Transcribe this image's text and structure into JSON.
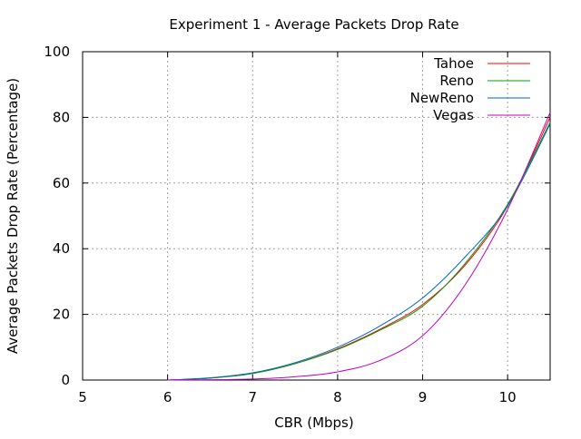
{
  "chart_data": {
    "type": "line",
    "title": "Experiment 1 - Average Packets Drop Rate",
    "xlabel": "CBR (Mbps)",
    "ylabel": "Average Packets Drop Rate (Percentage)",
    "xlim": [
      5,
      10.5
    ],
    "ylim": [
      0,
      100
    ],
    "xticks": [
      "5",
      "6",
      "7",
      "8",
      "9",
      "10"
    ],
    "yticks": [
      "0",
      "20",
      "40",
      "60",
      "80",
      "100"
    ],
    "grid": true,
    "legend_position": "top-right",
    "series": [
      {
        "name": "Tahoe",
        "color": "#ff0000",
        "x": [
          6.0,
          6.5,
          7.0,
          7.5,
          8.0,
          8.5,
          9.0,
          9.5,
          10.0,
          10.5
        ],
        "y": [
          0.0,
          0.6,
          2.0,
          5.0,
          9.5,
          15.5,
          23.0,
          35.0,
          53.0,
          80.0
        ]
      },
      {
        "name": "Reno",
        "color": "#00a000",
        "x": [
          6.0,
          6.5,
          7.0,
          7.5,
          8.0,
          8.5,
          9.0,
          9.5,
          10.0,
          10.5
        ],
        "y": [
          0.0,
          0.6,
          2.0,
          5.0,
          9.3,
          15.2,
          22.5,
          35.5,
          53.5,
          78.5
        ]
      },
      {
        "name": "NewReno",
        "color": "#0066cc",
        "x": [
          6.0,
          6.5,
          7.0,
          7.5,
          8.0,
          8.5,
          9.0,
          9.5,
          10.0,
          10.5
        ],
        "y": [
          0.0,
          0.7,
          2.2,
          5.3,
          10.0,
          16.5,
          25.0,
          37.5,
          53.0,
          78.0
        ]
      },
      {
        "name": "Vegas",
        "color": "#c000c0",
        "x": [
          6.0,
          6.5,
          7.0,
          7.5,
          8.0,
          8.5,
          9.0,
          9.5,
          10.0,
          10.5
        ],
        "y": [
          0.0,
          0.1,
          0.3,
          1.0,
          2.5,
          6.0,
          13.5,
          29.0,
          52.0,
          81.5
        ]
      }
    ]
  }
}
